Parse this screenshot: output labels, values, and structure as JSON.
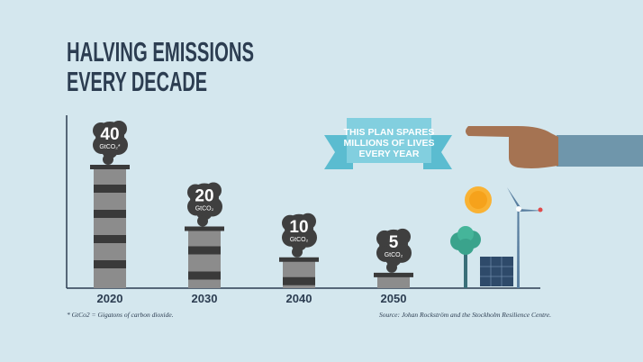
{
  "chart_data": {
    "type": "bar",
    "title": [
      "HALVING EMISSIONS",
      "EVERY DECADE"
    ],
    "categories": [
      "2020",
      "2030",
      "2040",
      "2050"
    ],
    "values": [
      40,
      20,
      10,
      5
    ],
    "value_units": [
      "GtCO₂*",
      "GtCO₂",
      "GtCO₂",
      "GtCO₂"
    ],
    "ylim": [
      0,
      40
    ],
    "color": "#8c8c8c",
    "band_color": "#3a3a3a",
    "smoke_color": "#3f3f3f",
    "banner": [
      "THIS PLAN SPARES",
      "MILLIONS OF LIVES",
      "EVERY YEAR"
    ],
    "footnote": "* GtCo2 = Gigatons of carbon dioxide.",
    "source": "Source: Johan Rockström and the Stockholm Resilience Centre."
  }
}
